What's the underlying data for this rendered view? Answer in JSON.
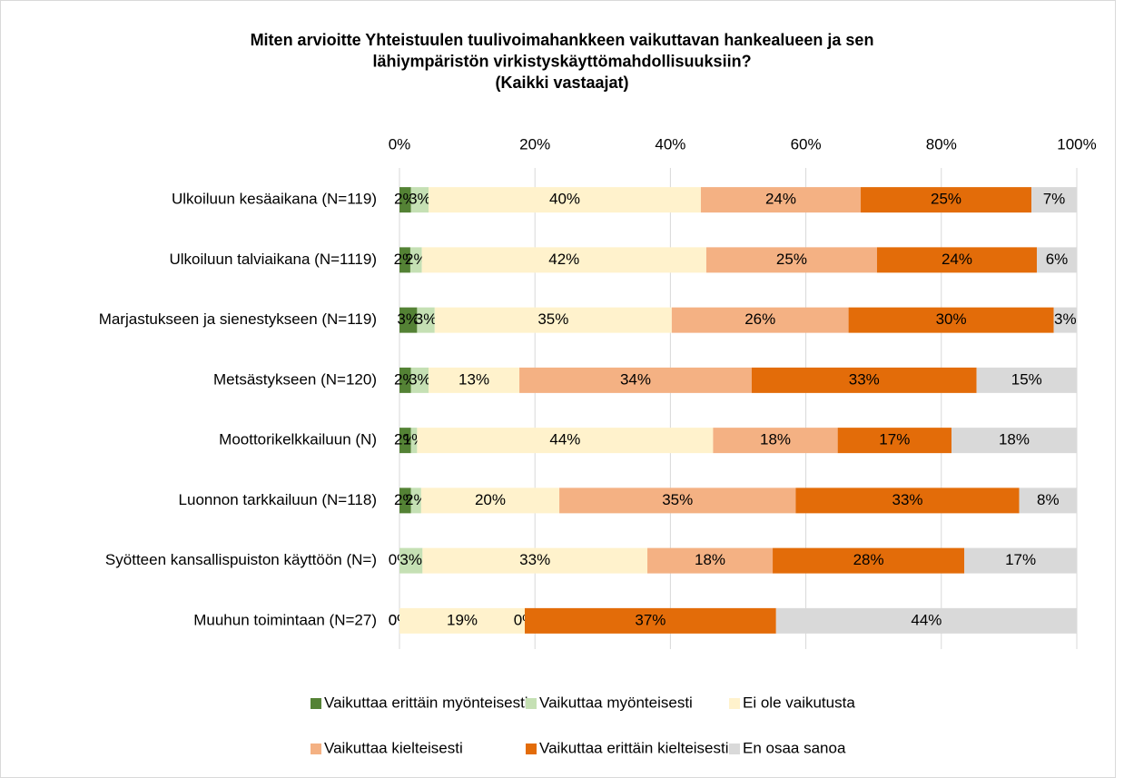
{
  "chart_data": {
    "type": "stacked_bar_horizontal",
    "title": [
      "Miten arvioitte Yhteistuulen tuulivoimahankkeen vaikuttavan hankealueen ja sen",
      "lähiympäristön virkistyskäyttömahdollisuuksiin?",
      "(Kaikki vastaajat)"
    ],
    "categories": [
      "Ulkoiluun kesäaikana (N=119)",
      "Ulkoiluun talviaikana (N=1119)",
      "Marjastukseen ja sienestykseen (N=119)",
      "Metsästykseen (N=120)",
      "Moottorikelkkailuun (N)",
      "Luonnon tarkkailuun (N=118)",
      "Syötteen kansallispuiston käyttöön (N=)",
      "Muuhun toimintaan (N=27)"
    ],
    "series": [
      {
        "name": "Vaikuttaa erittäin myönteisesti",
        "color": "#548235",
        "values": [
          1.7,
          1.6,
          2.6,
          1.7,
          1.7,
          1.7,
          0,
          0
        ],
        "value_labels": [
          "2%",
          "2%",
          "3%",
          "2%",
          "2%",
          "2%",
          "0%",
          "0%"
        ]
      },
      {
        "name": "Vaikuttaa myönteisesti",
        "color": "#c5e0b4",
        "values": [
          2.6,
          1.7,
          2.6,
          2.6,
          0.9,
          1.5,
          3.4,
          0
        ],
        "value_labels": [
          "3%",
          "2%",
          "3%",
          "3%",
          "1%",
          "2%",
          "3%",
          "0%"
        ]
      },
      {
        "name": "Ei ole vaikutusta",
        "color": "#fff2cc",
        "values": [
          40.2,
          42.0,
          35.0,
          13.4,
          43.7,
          20.4,
          33.2,
          18.5
        ],
        "value_labels": [
          "40%",
          "42%",
          "35%",
          "13%",
          "44%",
          "20%",
          "33%",
          "19%"
        ]
      },
      {
        "name": "Vaikuttaa kielteisesti",
        "color": "#f4b183",
        "values": [
          23.6,
          25.2,
          26.1,
          34.3,
          18.4,
          34.9,
          18.5,
          0
        ],
        "value_labels": [
          "24%",
          "25%",
          "26%",
          "34%",
          "18%",
          "35%",
          "18%",
          "0%"
        ]
      },
      {
        "name": "Vaikuttaa erittäin kielteisesti",
        "color": "#e36c09",
        "values": [
          25.2,
          23.6,
          30.3,
          33.2,
          16.8,
          33.0,
          28.3,
          37.1
        ],
        "value_labels": [
          "25%",
          "24%",
          "30%",
          "33%",
          "17%",
          "33%",
          "28%",
          "37%"
        ]
      },
      {
        "name": "En osaa sanoa",
        "color": "#d9d9d9",
        "values": [
          6.7,
          5.9,
          3.4,
          14.8,
          18.5,
          8.5,
          16.6,
          44.4
        ],
        "value_labels": [
          "7%",
          "6%",
          "3%",
          "15%",
          "18%",
          "8%",
          "17%",
          "44%"
        ]
      }
    ],
    "xlim": [
      0,
      100
    ],
    "xticks": [
      {
        "value": 0,
        "label": "0%"
      },
      {
        "value": 20,
        "label": "20%"
      },
      {
        "value": 40,
        "label": "40%"
      },
      {
        "value": 60,
        "label": "60%"
      },
      {
        "value": 80,
        "label": "80%"
      },
      {
        "value": 100,
        "label": "100%"
      }
    ],
    "grid": true,
    "legend": "bottom"
  }
}
